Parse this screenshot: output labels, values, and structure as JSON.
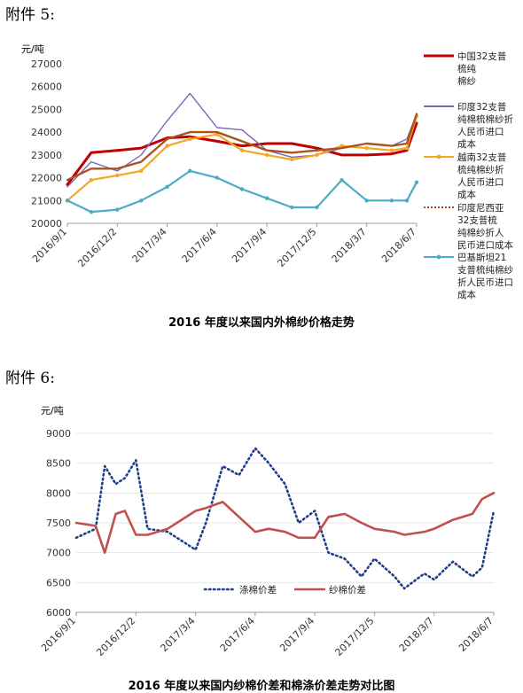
{
  "heading_1": "附件 5:",
  "heading_2": "附件 6:",
  "chart_data": [
    {
      "type": "line",
      "unit": "元/吨",
      "title": "2016 年度以来国内外棉纱价格走势",
      "ylim": [
        20000,
        27000
      ],
      "yticks": [
        20000,
        21000,
        22000,
        23000,
        24000,
        25000,
        26000,
        27000
      ],
      "xticks": [
        "2016/9/1",
        "2016/12/2",
        "2017/3/4",
        "2017/6/4",
        "2017/9/4",
        "2017/12/5",
        "2018/3/7",
        "2018/6/7"
      ],
      "x": [
        "2016/9/1",
        "2016/10/15",
        "2016/12/2",
        "2017/1/15",
        "2017/3/4",
        "2017/4/15",
        "2017/6/4",
        "2017/7/20",
        "2017/9/4",
        "2017/10/20",
        "2017/12/5",
        "2018/1/20",
        "2018/3/7",
        "2018/4/22",
        "2018/5/20",
        "2018/6/7"
      ],
      "series": [
        {
          "name": "中国32支普梳纯棉纱",
          "color": "#c00000",
          "values": [
            21700,
            23100,
            23200,
            23300,
            23750,
            23800,
            23600,
            23400,
            23500,
            23500,
            23300,
            23000,
            23000,
            23050,
            23200,
            24400
          ]
        },
        {
          "name": "印度32支普纯棉梳棉纱折人民币进口成本",
          "color": "#7b68b3",
          "values": [
            21600,
            22700,
            22300,
            23000,
            24500,
            25700,
            24200,
            24100,
            23200,
            22900,
            23000,
            23300,
            23500,
            23400,
            23700,
            24800
          ]
        },
        {
          "name": "越南32支普梳纯棉纱折人民币进口成本",
          "color": "#f5a623",
          "values": [
            21000,
            21900,
            22100,
            22300,
            23400,
            23700,
            23900,
            23200,
            23000,
            22800,
            23000,
            23400,
            23300,
            23200,
            23300,
            24700
          ]
        },
        {
          "name": "印度尼西亚32支普梳纯棉纱折人民币进口成本",
          "color": "#a9541f",
          "values": [
            21900,
            22400,
            22400,
            22700,
            23700,
            24000,
            24000,
            23600,
            23200,
            23100,
            23200,
            23300,
            23500,
            23400,
            23500,
            24800
          ]
        },
        {
          "name": "巴基斯坦21支普梳纯棉纱折人民币进口成本",
          "color": "#4bacc6",
          "values": [
            21000,
            20500,
            20600,
            21000,
            21600,
            22300,
            22000,
            21500,
            21100,
            20700,
            20700,
            21900,
            21000,
            21000,
            21000,
            21800
          ]
        }
      ]
    },
    {
      "type": "line",
      "unit": "元/吨",
      "title": "2016 年度以来国内纱棉价差和棉涤价差走势对比图",
      "ylim": [
        6000,
        9000
      ],
      "yticks": [
        6000,
        6500,
        7000,
        7500,
        8000,
        8500,
        9000
      ],
      "xticks": [
        "2016/9/1",
        "2016/12/2",
        "2017/3/4",
        "2017/6/4",
        "2017/9/4",
        "2017/12/5",
        "2018/3/7",
        "2018/6/7"
      ],
      "x": [
        "2016/9/1",
        "2016/10/1",
        "2016/10/15",
        "2016/11/1",
        "2016/11/15",
        "2016/12/2",
        "2016/12/20",
        "2017/1/20",
        "2017/3/4",
        "2017/3/20",
        "2017/4/15",
        "2017/5/10",
        "2017/6/4",
        "2017/6/25",
        "2017/7/20",
        "2017/8/10",
        "2017/9/4",
        "2017/9/25",
        "2017/10/20",
        "2017/11/15",
        "2017/12/5",
        "2018/1/5",
        "2018/1/20",
        "2018/2/20",
        "2018/3/7",
        "2018/4/5",
        "2018/5/5",
        "2018/5/20",
        "2018/6/7"
      ],
      "series": [
        {
          "name": "涤棉价差",
          "color": "#1f3f8a",
          "dash": "dotted",
          "values": [
            7250,
            7400,
            8450,
            8150,
            8250,
            8550,
            7400,
            7350,
            7050,
            7500,
            8450,
            8300,
            8750,
            8500,
            8150,
            7500,
            7700,
            7000,
            6900,
            6600,
            6900,
            6600,
            6400,
            6650,
            6550,
            6850,
            6600,
            6750,
            7700
          ]
        },
        {
          "name": "纱棉价差",
          "color": "#c0504d",
          "dash": "solid",
          "values": [
            7500,
            7450,
            7000,
            7650,
            7700,
            7300,
            7300,
            7400,
            7700,
            7750,
            7850,
            7600,
            7350,
            7400,
            7350,
            7250,
            7250,
            7600,
            7650,
            7500,
            7400,
            7350,
            7300,
            7350,
            7400,
            7550,
            7650,
            7900,
            8000
          ]
        }
      ]
    }
  ]
}
